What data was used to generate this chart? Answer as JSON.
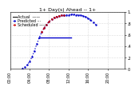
{
  "title": "1+ Day(s) Ahead -- 1+",
  "legend_line1": "Actual  ——",
  "legend_line2": "Predicted ···",
  "legend_line3": "Scheduled ——",
  "series_blue_x": [
    5,
    6,
    7,
    8,
    9,
    10,
    11,
    12,
    13,
    14,
    15,
    16,
    17,
    18,
    19,
    20,
    21,
    22
  ],
  "series_blue_y": [
    0.01,
    0.03,
    0.07,
    0.13,
    0.21,
    0.32,
    0.44,
    0.55,
    0.65,
    0.72,
    0.78,
    0.83,
    0.87,
    0.9,
    0.92,
    0.93,
    0.94,
    0.94
  ],
  "series_red_x": [
    13,
    14,
    15,
    16,
    17,
    18,
    19,
    20,
    21,
    22
  ],
  "series_red_y": [
    0.65,
    0.72,
    0.78,
    0.83,
    0.87,
    0.9,
    0.92,
    0.93,
    0.94,
    0.94
  ],
  "series_blue2_x": [
    22,
    23,
    24,
    25,
    26,
    27,
    28,
    29,
    30,
    31,
    32,
    33,
    34,
    35
  ],
  "series_blue2_y": [
    0.94,
    0.95,
    0.95,
    0.96,
    0.96,
    0.95,
    0.95,
    0.94,
    0.93,
    0.91,
    0.89,
    0.86,
    0.82,
    0.78
  ],
  "hline_y": 0.55,
  "hline_x1": 12,
  "hline_x2": 25,
  "ylim": [
    0,
    1.0
  ],
  "xlim": [
    0,
    47
  ],
  "ytick_positions": [
    0.0,
    0.2,
    0.4,
    0.6,
    0.8,
    1.0
  ],
  "ytick_labels": [
    "0",
    ".2",
    ".4",
    ".6",
    ".8",
    "1."
  ],
  "xtick_positions": [
    0,
    8,
    16,
    24,
    32,
    40
  ],
  "xtick_labels": [
    "00:00",
    "04:00",
    "08:00",
    "12:00",
    "16:00",
    "20:00"
  ],
  "blue_color": "#0000cc",
  "red_color": "#cc0000",
  "background_color": "#ffffff",
  "grid_color": "#aaaaaa",
  "title_fontsize": 4.5,
  "tick_fontsize": 3.5,
  "legend_fontsize": 3.5
}
